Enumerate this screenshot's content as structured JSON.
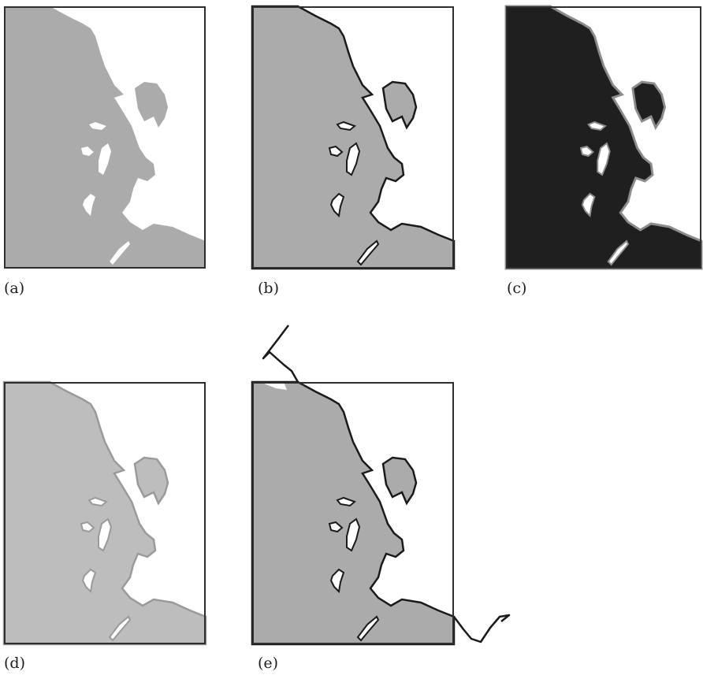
{
  "panels": [
    {
      "id": "a",
      "label": "(a)"
    },
    {
      "id": "b",
      "label": "(b)"
    },
    {
      "id": "c",
      "label": "(c)"
    },
    {
      "id": "d",
      "label": "(d)"
    },
    {
      "id": "e",
      "label": "(e)"
    }
  ],
  "colors": {
    "land_gray": "#ababab",
    "land_light_gray": "#bdbdbd",
    "land_black": "#1f1f1f",
    "coastline_dark": "#1a1a1a",
    "frame": "#2e2e2e",
    "water": "#ffffff"
  }
}
